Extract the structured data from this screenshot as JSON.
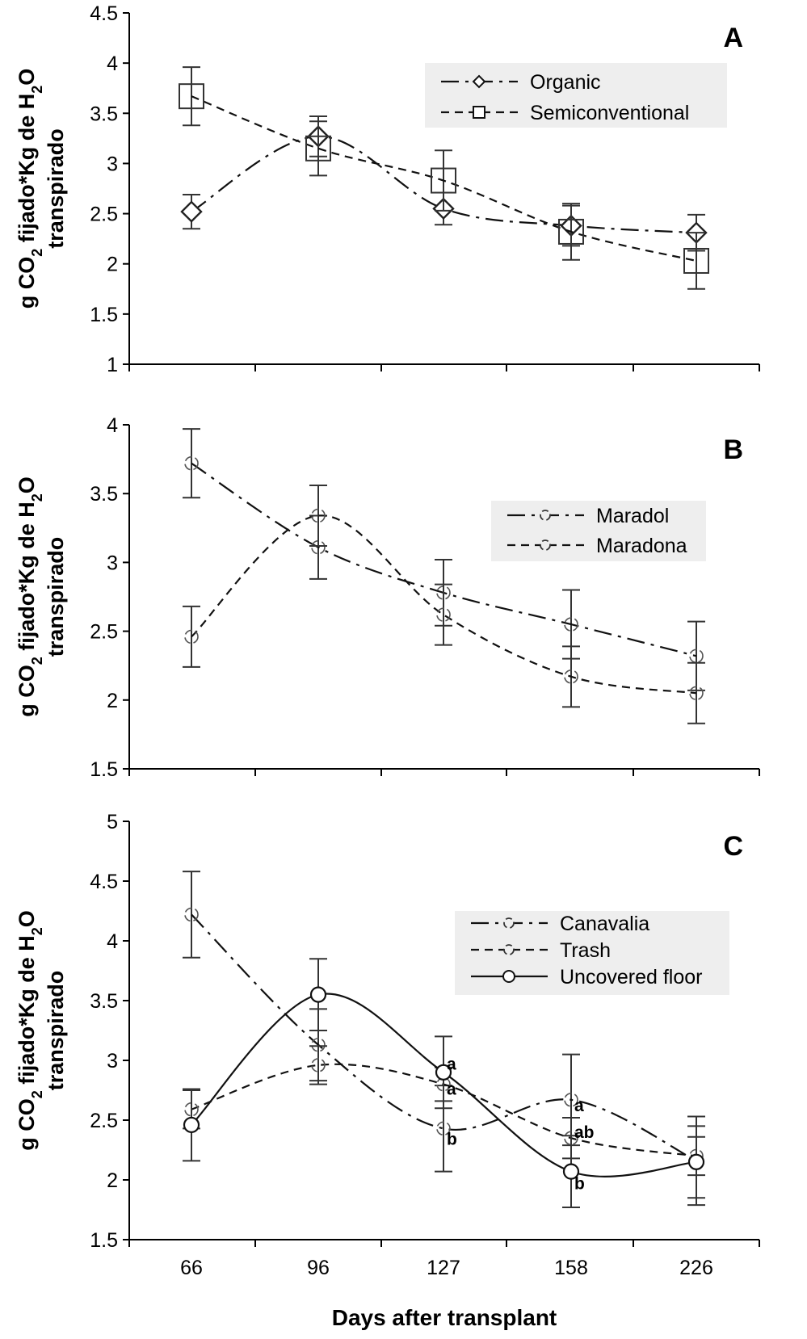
{
  "chart_data": [
    {
      "type": "line",
      "panel_label": "A",
      "ylabel_line1": "g CO",
      "ylabel_sub": "2",
      "ylabel_mid": " fijado*Kg de H",
      "ylabel_sub2": "2",
      "ylabel_end": "O",
      "ylabel_line2": "transpirado",
      "xlabel": "",
      "ylim": [
        1,
        4.5
      ],
      "yticks": [
        "1",
        "1.5",
        "2",
        "2.5",
        "3",
        "3.5",
        "4",
        "4.5"
      ],
      "categories": [
        "66",
        "96",
        "127",
        "158",
        "226"
      ],
      "show_xtick_labels": false,
      "series": [
        {
          "name": "Organic",
          "marker": "diamond",
          "dash": "22,8,4,8",
          "values": [
            2.52,
            3.27,
            2.55,
            2.38,
            2.31
          ],
          "errors": [
            0.17,
            0.2,
            0.16,
            0.2,
            0.18
          ]
        },
        {
          "name": "Semiconventional",
          "marker": "square",
          "dash": "10,7",
          "values": [
            3.67,
            3.15,
            2.83,
            2.32,
            2.03
          ],
          "errors": [
            0.29,
            0.27,
            0.3,
            0.28,
            0.28
          ]
        }
      ],
      "annotations": []
    },
    {
      "type": "line",
      "panel_label": "B",
      "ylabel_line1": "g CO",
      "ylabel_sub": "2",
      "ylabel_mid": " fijado*Kg de H",
      "ylabel_sub2": "2",
      "ylabel_end": "O",
      "ylabel_line2": "transpirado",
      "xlabel": "",
      "ylim": [
        1.5,
        4
      ],
      "yticks": [
        "1.5",
        "2",
        "2.5",
        "3",
        "3.5",
        "4"
      ],
      "categories": [
        "66",
        "96",
        "127",
        "158",
        "226"
      ],
      "show_xtick_labels": false,
      "series": [
        {
          "name": "Maradol",
          "marker": "open-circle",
          "dash": "22,8,4,8",
          "values": [
            3.72,
            3.11,
            2.78,
            2.55,
            2.32
          ],
          "errors": [
            0.25,
            0.23,
            0.24,
            0.25,
            0.25
          ]
        },
        {
          "name": "Maradona",
          "marker": "open-circle",
          "dash": "10,7",
          "values": [
            2.46,
            3.34,
            2.62,
            2.17,
            2.05
          ],
          "errors": [
            0.22,
            0.22,
            0.22,
            0.22,
            0.22
          ]
        }
      ],
      "annotations": []
    },
    {
      "type": "line",
      "panel_label": "C",
      "ylabel_line1": "g CO",
      "ylabel_sub": "2",
      "ylabel_mid": " fijado*Kg de H",
      "ylabel_sub2": "2",
      "ylabel_end": "O",
      "ylabel_line2": "transpirado",
      "xlabel": "Days after transplant",
      "ylim": [
        1.5,
        5
      ],
      "yticks": [
        "1.5",
        "2",
        "2.5",
        "3",
        "3.5",
        "4",
        "4.5",
        "5"
      ],
      "categories": [
        "66",
        "96",
        "127",
        "158",
        "226"
      ],
      "show_xtick_labels": true,
      "series": [
        {
          "name": "Canavalia",
          "marker": "open-circle",
          "dash": "22,8,4,8",
          "values": [
            4.22,
            3.13,
            2.43,
            2.67,
            2.16
          ],
          "errors": [
            0.36,
            0.3,
            0.36,
            0.38,
            0.37
          ]
        },
        {
          "name": "Trash",
          "marker": "open-circle",
          "dash": "10,7",
          "values": [
            2.59,
            2.96,
            2.8,
            2.35,
            2.2
          ],
          "errors": [
            0.16,
            0.16,
            0.14,
            0.17,
            0.16
          ]
        },
        {
          "name": "Uncovered floor",
          "marker": "big-circle",
          "dash": "",
          "values": [
            2.46,
            3.55,
            2.9,
            2.07,
            2.15
          ],
          "errors": [
            0.3,
            0.3,
            0.3,
            0.3,
            0.3
          ]
        }
      ],
      "annotations": [
        {
          "text": "a",
          "category": "127",
          "y": 2.97
        },
        {
          "text": "a",
          "category": "127",
          "y": 2.76
        },
        {
          "text": "b",
          "category": "127",
          "y": 2.34
        },
        {
          "text": "a",
          "category": "158",
          "y": 2.62
        },
        {
          "text": "ab",
          "category": "158",
          "y": 2.4
        },
        {
          "text": "b",
          "category": "158",
          "y": 1.97
        }
      ]
    }
  ]
}
